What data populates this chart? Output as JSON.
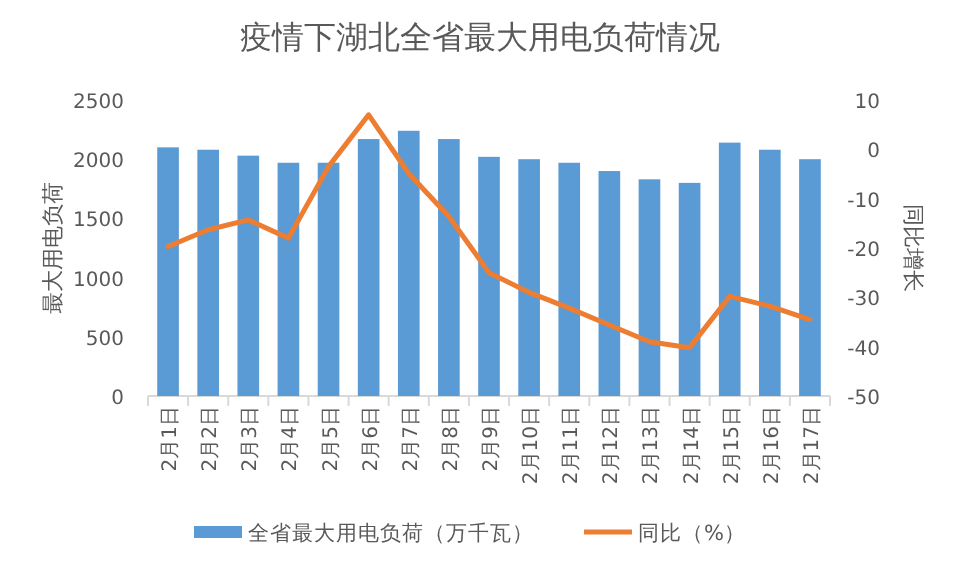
{
  "chart_data": {
    "type": "bar",
    "title": "疫情下湖北全省最大用电负荷情况",
    "ylabel": "最大用电负荷",
    "y2label": "同比增长",
    "categories": [
      "2月1日",
      "2月2日",
      "2月3日",
      "2月4日",
      "2月5日",
      "2月6日",
      "2月7日",
      "2月8日",
      "2月9日",
      "2月10日",
      "2月11日",
      "2月12日",
      "2月13日",
      "2月14日",
      "2月15日",
      "2月16日",
      "2月17日"
    ],
    "series": [
      {
        "name": "全省最大用电负荷（万千瓦）",
        "color": "#5b9bd5",
        "values": [
          2100,
          2080,
          2030,
          1970,
          1970,
          2170,
          2240,
          2170,
          2020,
          2000,
          1970,
          1900,
          1830,
          1800,
          2140,
          2080,
          2000
        ]
      },
      {
        "name": "同比（%）",
        "type": "line",
        "axis": "y2",
        "color": "#ed7d31",
        "values": [
          -19.7,
          -16.3,
          -14.3,
          -18,
          -3.5,
          7,
          -4.9,
          -13.6,
          -25,
          -29,
          -32.2,
          -35.6,
          -39,
          -40.2,
          -29.8,
          -31.8,
          -34.5
        ]
      }
    ],
    "ylim": [
      0,
      2500
    ],
    "yticks": [
      0,
      500,
      1000,
      1500,
      2000,
      2500
    ],
    "y2lim": [
      -50,
      10
    ],
    "y2ticks": [
      -50,
      -40,
      -30,
      -20,
      -10,
      0,
      10
    ],
    "grid": false,
    "legend": "bottom",
    "marker": "none",
    "line_style": "solid"
  }
}
